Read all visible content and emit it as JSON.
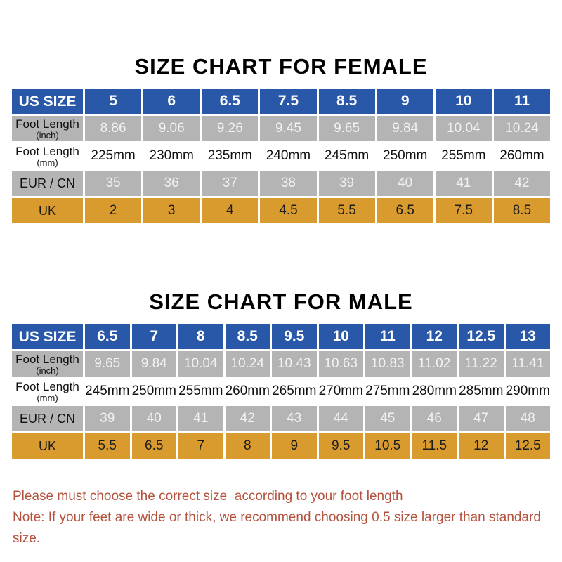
{
  "colors": {
    "header_blue": "#2a58a9",
    "row_gray": "#b4b4b4",
    "uk_orange": "#d99b2d",
    "note_red": "#b5523d"
  },
  "female_table": {
    "title": "SIZE CHART FOR FEMALE",
    "rows": [
      {
        "label": "US SIZE",
        "sub": "",
        "style": "blue",
        "values": [
          "5",
          "6",
          "6.5",
          "7.5",
          "8.5",
          "9",
          "10",
          "11"
        ]
      },
      {
        "label": "Foot Length",
        "sub": "(inch)",
        "style": "gray",
        "values": [
          "8.86",
          "9.06",
          "9.26",
          "9.45",
          "9.65",
          "9.84",
          "10.04",
          "10.24"
        ]
      },
      {
        "label": "Foot Length",
        "sub": "(mm)",
        "style": "white",
        "values": [
          "225mm",
          "230mm",
          "235mm",
          "240mm",
          "245mm",
          "250mm",
          "255mm",
          "260mm"
        ]
      },
      {
        "label": "EUR / CN",
        "sub": "",
        "style": "gray",
        "values": [
          "35",
          "36",
          "37",
          "38",
          "39",
          "40",
          "41",
          "42"
        ]
      },
      {
        "label": "UK",
        "sub": "",
        "style": "orange",
        "values": [
          "2",
          "3",
          "4",
          "4.5",
          "5.5",
          "6.5",
          "7.5",
          "8.5"
        ]
      }
    ]
  },
  "male_table": {
    "title": "SIZE CHART FOR MALE",
    "rows": [
      {
        "label": "US SIZE",
        "sub": "",
        "style": "blue",
        "values": [
          "6.5",
          "7",
          "8",
          "8.5",
          "9.5",
          "10",
          "11",
          "12",
          "12.5",
          "13"
        ]
      },
      {
        "label": "Foot Length",
        "sub": "(inch)",
        "style": "gray",
        "values": [
          "9.65",
          "9.84",
          "10.04",
          "10.24",
          "10.43",
          "10.63",
          "10.83",
          "11.02",
          "11.22",
          "11.41"
        ]
      },
      {
        "label": "Foot Length",
        "sub": "(mm)",
        "style": "white",
        "values": [
          "245mm",
          "250mm",
          "255mm",
          "260mm",
          "265mm",
          "270mm",
          "275mm",
          "280mm",
          "285mm",
          "290mm"
        ]
      },
      {
        "label": "EUR / CN",
        "sub": "",
        "style": "gray",
        "values": [
          "39",
          "40",
          "41",
          "42",
          "43",
          "44",
          "45",
          "46",
          "47",
          "48"
        ]
      },
      {
        "label": "UK",
        "sub": "",
        "style": "orange",
        "values": [
          "5.5",
          "6.5",
          "7",
          "8",
          "9",
          "9.5",
          "10.5",
          "11.5",
          "12",
          "12.5"
        ]
      }
    ]
  },
  "notes": [
    "Please must choose the correct size  according to your foot length",
    "Note: If your feet are wide or thick, we recommend choosing 0.5 size larger than standard size."
  ]
}
